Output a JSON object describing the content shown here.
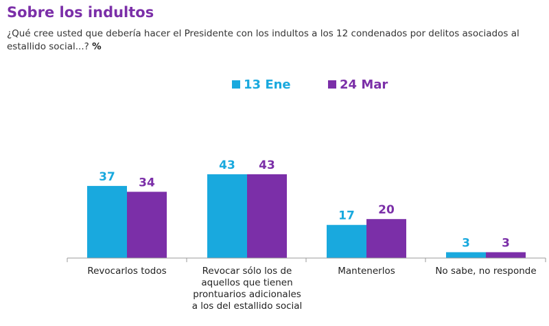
{
  "title": "Sobre los indultos",
  "subtitle": "¿Qué cree usted que debería hacer el Presidente con los indultos a los 12 condenados por delitos asociados al estallido social...?",
  "unit": "%",
  "colors": {
    "series1": "#19a9de",
    "series2": "#7b2fa8",
    "title": "#7b2fa8"
  },
  "chart_data": {
    "type": "bar",
    "title": "Sobre los indultos",
    "xlabel": "",
    "ylabel": "%",
    "ylim": [
      0,
      50
    ],
    "grid": false,
    "legend": "top-center",
    "categories": [
      [
        "Revocarlos todos"
      ],
      [
        "Revocar sólo los de",
        "aquellos que tienen",
        "prontuarios adicionales",
        "a los del estallido social"
      ],
      [
        "Mantenerlos"
      ],
      [
        "No sabe, no responde"
      ]
    ],
    "series": [
      {
        "name": "13 Ene",
        "values": [
          37,
          43,
          17,
          3
        ]
      },
      {
        "name": "24 Mar",
        "values": [
          34,
          43,
          20,
          3
        ]
      }
    ]
  }
}
